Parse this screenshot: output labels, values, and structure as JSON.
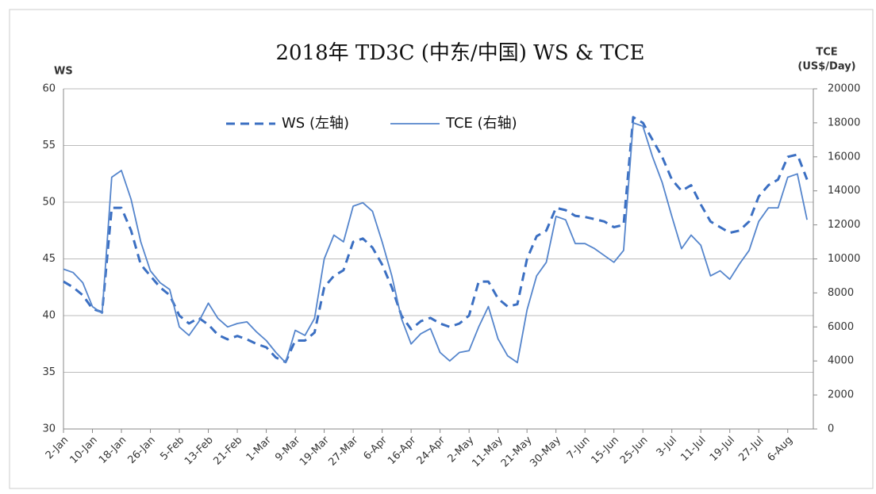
{
  "chart_data": {
    "type": "line",
    "title": "2018年 TD3C (中东/中国) WS & TCE",
    "ylabel": "WS",
    "y2label": [
      "TCE",
      "(US$/Day)"
    ],
    "categories": [
      "2-Jan",
      null,
      null,
      "10-Jan",
      null,
      null,
      "18-Jan",
      null,
      null,
      "26-Jan",
      null,
      null,
      "5-Feb",
      null,
      null,
      "13-Feb",
      null,
      null,
      "21-Feb",
      null,
      null,
      "1-Mar",
      null,
      null,
      "9-Mar",
      null,
      null,
      "19-Mar",
      null,
      null,
      "27-Mar",
      null,
      null,
      "6-Apr",
      null,
      null,
      "16-Apr",
      null,
      null,
      "24-Apr",
      null,
      null,
      "2-May",
      null,
      null,
      "11-May",
      null,
      null,
      "21-May",
      null,
      null,
      "30-May",
      null,
      null,
      "7-Jun",
      null,
      null,
      "15-Jun",
      null,
      null,
      "25-Jun",
      null,
      null,
      "3-Jul",
      null,
      null,
      "11-Jul",
      null,
      null,
      "19-Jul",
      null,
      null,
      "27-Jul",
      null,
      null,
      "6-Aug",
      null,
      null
    ],
    "series": [
      {
        "name": "WS (左轴)",
        "color": "#3b6fc2",
        "dashed": true,
        "values": [
          43,
          42.5,
          41.8,
          40.6,
          40.3,
          49.5,
          49.5,
          47.5,
          44.5,
          43.5,
          42.5,
          41.8,
          40,
          39.3,
          39.8,
          39.2,
          38.3,
          37.9,
          38.2,
          37.9,
          37.5,
          37.2,
          36.3,
          35.9,
          37.8,
          37.8,
          38.5,
          42.5,
          43.5,
          44,
          46.5,
          46.8,
          46,
          44.5,
          42.5,
          40,
          38.8,
          39.5,
          39.8,
          39.3,
          39,
          39.3,
          40,
          43,
          43,
          41.5,
          40.8,
          41,
          45,
          47,
          47.5,
          49.5,
          49.3,
          48.8,
          48.7,
          48.5,
          48.3,
          47.8,
          48,
          57.5,
          57,
          55.5,
          54,
          52,
          51,
          51.5,
          49.8,
          48.3,
          47.8,
          47.3,
          47.5,
          48.3,
          50.5,
          51.5,
          52,
          54,
          54.2,
          52
        ]
      },
      {
        "name": "TCE (右轴)",
        "color": "#5585cc",
        "dashed": false,
        "axis": "y2",
        "values": [
          9400,
          9200,
          8600,
          7200,
          6800,
          14800,
          15200,
          13500,
          11000,
          9300,
          8600,
          8200,
          6000,
          5500,
          6300,
          7400,
          6500,
          6000,
          6200,
          6300,
          5700,
          5200,
          4500,
          3900,
          5800,
          5500,
          6500,
          10000,
          11400,
          11000,
          13100,
          13300,
          12800,
          11000,
          9000,
          6500,
          5000,
          5600,
          5900,
          4500,
          4000,
          4500,
          4600,
          6000,
          7200,
          5300,
          4300,
          3900,
          7000,
          9000,
          9800,
          12500,
          12300,
          10900,
          10900,
          10600,
          10200,
          9800,
          10500,
          18000,
          17800,
          16000,
          14500,
          12500,
          10600,
          11400,
          10800,
          9000,
          9300,
          8800,
          9700,
          10500,
          12200,
          13000,
          13000,
          14800,
          15000,
          12300
        ]
      }
    ],
    "ylim": [
      30,
      60
    ],
    "yticks": [
      30,
      35,
      40,
      45,
      50,
      55,
      60
    ],
    "y2lim": [
      0,
      20000
    ],
    "y2ticks": [
      0,
      2000,
      4000,
      6000,
      8000,
      10000,
      12000,
      14000,
      16000,
      18000,
      20000
    ],
    "grid": true,
    "legend": "top"
  }
}
